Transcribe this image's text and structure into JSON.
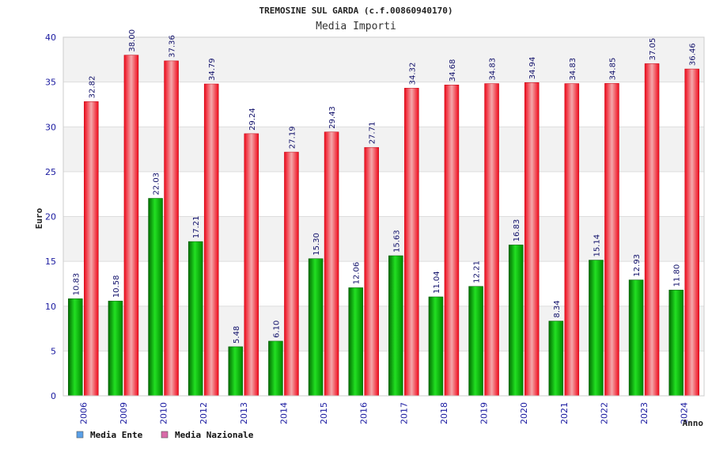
{
  "chart_data": {
    "type": "bar",
    "title": "TREMOSINE SUL GARDA (c.f.00860940170)",
    "subtitle": "Media Importi",
    "ylabel": "Euro",
    "xlabel": "Anno",
    "ylim": [
      0,
      40
    ],
    "yticks": [
      0,
      5,
      10,
      15,
      20,
      25,
      30,
      35,
      40
    ],
    "grid": true,
    "legend_position": "bottom-left",
    "categories": [
      "2006",
      "2009",
      "2010",
      "2012",
      "2013",
      "2014",
      "2015",
      "2016",
      "2017",
      "2018",
      "2019",
      "2020",
      "2021",
      "2022",
      "2023",
      "2024"
    ],
    "series": [
      {
        "name": "Media Ente",
        "color": "#00c000",
        "legend_color": "#5aa0e8",
        "values": [
          10.83,
          10.58,
          22.03,
          17.21,
          5.48,
          6.1,
          15.3,
          12.06,
          15.63,
          11.04,
          12.21,
          16.83,
          8.34,
          15.14,
          12.93,
          11.8
        ],
        "labels": [
          "10.83",
          "10.58",
          "22.03",
          "17.21",
          "5.48",
          "6.10",
          "15.30",
          "12.06",
          "15.63",
          "11.04",
          "12.21",
          "16.83",
          "8.34",
          "15.14",
          "12.93",
          "11.80"
        ]
      },
      {
        "name": "Media Nazionale",
        "color": "#ee1122",
        "legend_color": "#d86aa8",
        "values": [
          32.82,
          38.0,
          37.36,
          34.79,
          29.24,
          27.19,
          29.43,
          27.71,
          34.32,
          34.68,
          34.83,
          34.94,
          34.83,
          34.85,
          37.05,
          36.46
        ],
        "labels": [
          "32.82",
          "38.00",
          "37.36",
          "34.79",
          "29.24",
          "27.19",
          "29.43",
          "27.71",
          "34.32",
          "34.68",
          "34.83",
          "34.94",
          "34.83",
          "34.85",
          "37.05",
          "36.46"
        ]
      }
    ]
  }
}
